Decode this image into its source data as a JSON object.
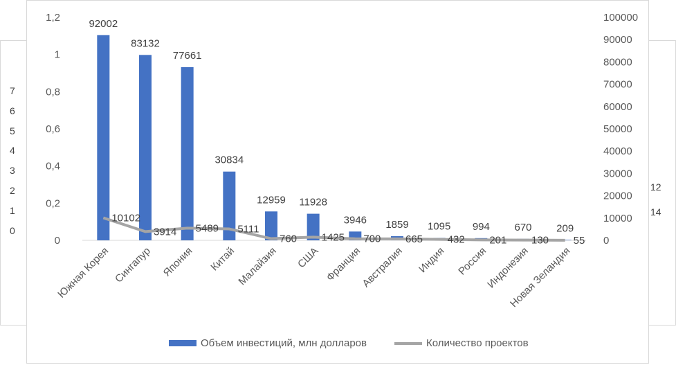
{
  "background_chart": {
    "left_ticks": [
      "7",
      "6",
      "5",
      "4",
      "3",
      "2",
      "1",
      "0"
    ],
    "right_ticks": [
      "12",
      "14"
    ]
  },
  "chart_data": {
    "type": "bar",
    "categories": [
      "Южная Корея",
      "Сингапур",
      "Япония",
      "Китай",
      "Малайзия",
      "США",
      "Франция",
      "Австралия",
      "Индия",
      "Россия",
      "Индонезия",
      "Новая Зеландия"
    ],
    "series": [
      {
        "name": "Объем инвестиций, млн долларов",
        "type": "bar",
        "axis": "right",
        "color": "#4472c4",
        "values": [
          92002,
          83132,
          77661,
          30834,
          12959,
          11928,
          3946,
          1859,
          1095,
          994,
          670,
          209
        ]
      },
      {
        "name": "Количество проектов",
        "type": "line",
        "axis": "right",
        "color": "#a5a5a5",
        "values": [
          10102,
          3914,
          5489,
          5111,
          760,
          1425,
          700,
          665,
          432,
          201,
          130,
          55
        ]
      }
    ],
    "left_axis": {
      "ylim": [
        0,
        1.2
      ],
      "ticks": [
        "0",
        "0,2",
        "0,4",
        "0,6",
        "0,8",
        "1",
        "1,2"
      ]
    },
    "right_axis": {
      "ylim": [
        0,
        100000
      ],
      "ticks": [
        "0",
        "10000",
        "20000",
        "30000",
        "40000",
        "50000",
        "60000",
        "70000",
        "80000",
        "90000",
        "100000"
      ]
    },
    "grid": false,
    "legend_position": "bottom"
  }
}
